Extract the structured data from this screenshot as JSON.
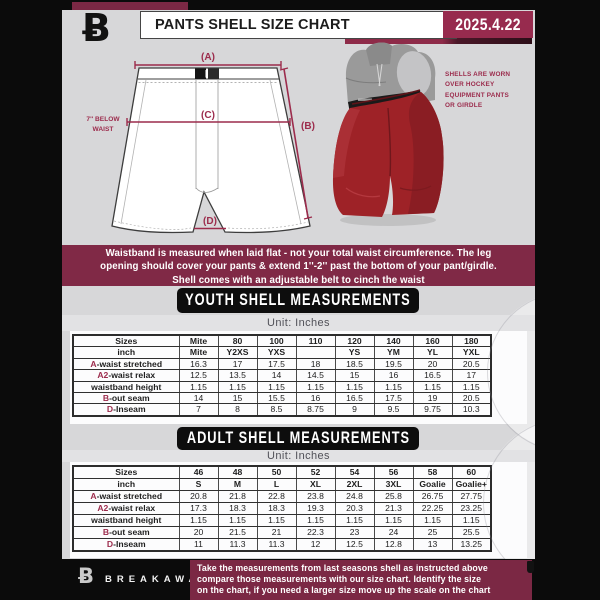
{
  "header": {
    "logo_glyph": "Ƀ",
    "title": "PANTS SHELL SIZE CHART",
    "date": "2025.4.22"
  },
  "diagram": {
    "label_a": "(A)",
    "label_b": "(B)",
    "label_c": "(C)",
    "label_d": "(D)",
    "waist_note_line1": "7'' BELOW",
    "waist_note_line2": "WAIST"
  },
  "photo_note": {
    "lines": [
      "SHELLS ARE WORN",
      "OVER HOCKEY",
      "EQUIPMENT PANTS",
      "OR GIRDLE"
    ]
  },
  "banner": {
    "lines": [
      "Waistband is measured when laid flat - not your total waist circumference. The leg",
      "opening should cover your pants & extend 1''-2'' past the bottom of your pant/girdle.",
      "Shell comes with an adjustable belt to cinch the waist"
    ]
  },
  "youth": {
    "title": "YOUTH SHELL MEASUREMENTS",
    "unit": "Unit: Inches",
    "rows": [
      {
        "prefix": "",
        "label": "Sizes",
        "bold": true,
        "values": [
          "Mite",
          "80",
          "100",
          "110",
          "120",
          "140",
          "160",
          "180"
        ]
      },
      {
        "prefix": "",
        "label": "inch",
        "bold": true,
        "values": [
          "Mite",
          "Y2XS",
          "YXS",
          "",
          "YS",
          "YM",
          "YL",
          "YXL"
        ]
      },
      {
        "prefix": "A",
        "label": "-waist stretched",
        "bold": false,
        "values": [
          "16.3",
          "17",
          "17.5",
          "18",
          "18.5",
          "19.5",
          "20",
          "20.5"
        ]
      },
      {
        "prefix": "A2",
        "label": "-waist relax",
        "bold": false,
        "values": [
          "12.5",
          "13.5",
          "14",
          "14.5",
          "15",
          "16",
          "16.5",
          "17"
        ]
      },
      {
        "prefix": "",
        "label": "waistband height",
        "bold": false,
        "values": [
          "1.15",
          "1.15",
          "1.15",
          "1.15",
          "1.15",
          "1.15",
          "1.15",
          "1.15"
        ]
      },
      {
        "prefix": "B",
        "label": "-out seam",
        "bold": false,
        "values": [
          "14",
          "15",
          "15.5",
          "16",
          "16.5",
          "17.5",
          "19",
          "20.5"
        ]
      },
      {
        "prefix": "D",
        "label": "-Inseam",
        "bold": false,
        "values": [
          "7",
          "8",
          "8.5",
          "8.75",
          "9",
          "9.5",
          "9.75",
          "10.3"
        ]
      }
    ]
  },
  "adult": {
    "title": "ADULT SHELL MEASUREMENTS",
    "unit": "Unit: Inches",
    "rows": [
      {
        "prefix": "",
        "label": "Sizes",
        "bold": true,
        "values": [
          "46",
          "48",
          "50",
          "52",
          "54",
          "56",
          "58",
          "60"
        ]
      },
      {
        "prefix": "",
        "label": "inch",
        "bold": true,
        "values": [
          "S",
          "M",
          "L",
          "XL",
          "2XL",
          "3XL",
          "Goalie",
          "Goalie+"
        ]
      },
      {
        "prefix": "A",
        "label": "-waist stretched",
        "bold": false,
        "values": [
          "20.8",
          "21.8",
          "22.8",
          "23.8",
          "24.8",
          "25.8",
          "26.75",
          "27.75"
        ]
      },
      {
        "prefix": "A2",
        "label": "-waist relax",
        "bold": false,
        "values": [
          "17.3",
          "18.3",
          "18.3",
          "19.3",
          "20.3",
          "21.3",
          "22.25",
          "23.25"
        ]
      },
      {
        "prefix": "",
        "label": "waistband height",
        "bold": false,
        "values": [
          "1.15",
          "1.15",
          "1.15",
          "1.15",
          "1.15",
          "1.15",
          "1.15",
          "1.15"
        ]
      },
      {
        "prefix": "B",
        "label": "-out seam",
        "bold": false,
        "values": [
          "20",
          "21.5",
          "21",
          "22.3",
          "23",
          "24",
          "25",
          "25.5"
        ]
      },
      {
        "prefix": "D",
        "label": "-Inseam",
        "bold": false,
        "values": [
          "11",
          "11.3",
          "11.3",
          "12",
          "12.5",
          "12.8",
          "13",
          "13.25"
        ]
      }
    ]
  },
  "footer": {
    "logo_glyph": "Ƀ",
    "brand": "BREAKAWAY",
    "note_lines": [
      "Take the measurements from last seasons shell as instructed above",
      "compare those measurements  with our size chart. Identify the size",
      "on the chart, if you need a larger size move up the scale on the chart"
    ]
  },
  "colors": {
    "maroon_banner": "#802946",
    "maroon_bright": "#972b4e",
    "maroon_label": "#9c2b4c",
    "page_bg": "#d7d7d9",
    "black": "#0d0d0d",
    "shell_red": "#9e2227"
  }
}
